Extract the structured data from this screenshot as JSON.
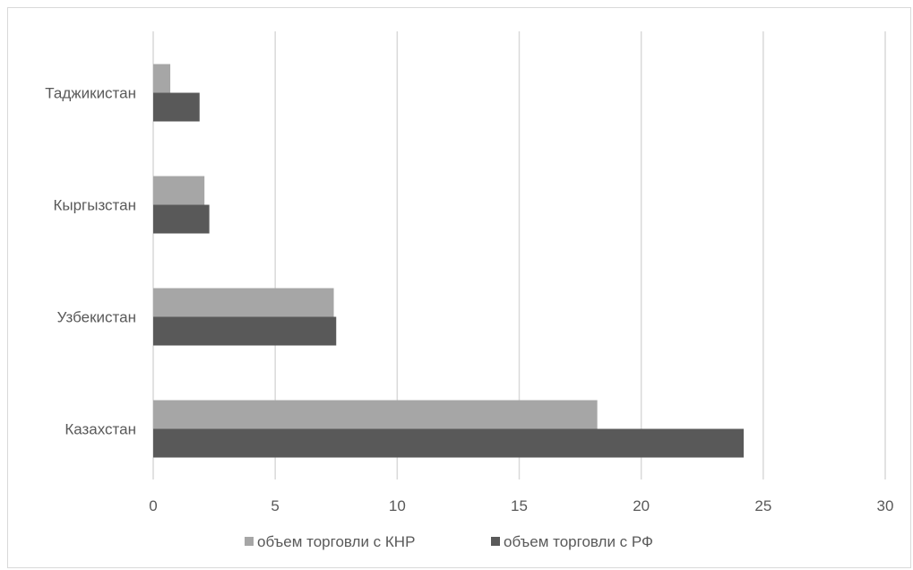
{
  "chart_data": {
    "type": "bar",
    "orientation": "horizontal",
    "categories": [
      "Таджикистан",
      "Кыргызстан",
      "Узбекистан",
      "Казахстан"
    ],
    "series": [
      {
        "name": "объем торговли с КНР",
        "color": "#a6a6a6",
        "values": [
          0.7,
          2.1,
          7.4,
          18.2
        ]
      },
      {
        "name": "объем торговли с РФ",
        "color": "#595959",
        "values": [
          1.9,
          2.3,
          7.5,
          24.2
        ]
      }
    ],
    "xlim": [
      0,
      30
    ],
    "xticks": [
      0,
      5,
      10,
      15,
      20,
      25,
      30
    ],
    "grid": true,
    "legend_position": "bottom",
    "title": "",
    "xlabel": "",
    "ylabel": ""
  }
}
